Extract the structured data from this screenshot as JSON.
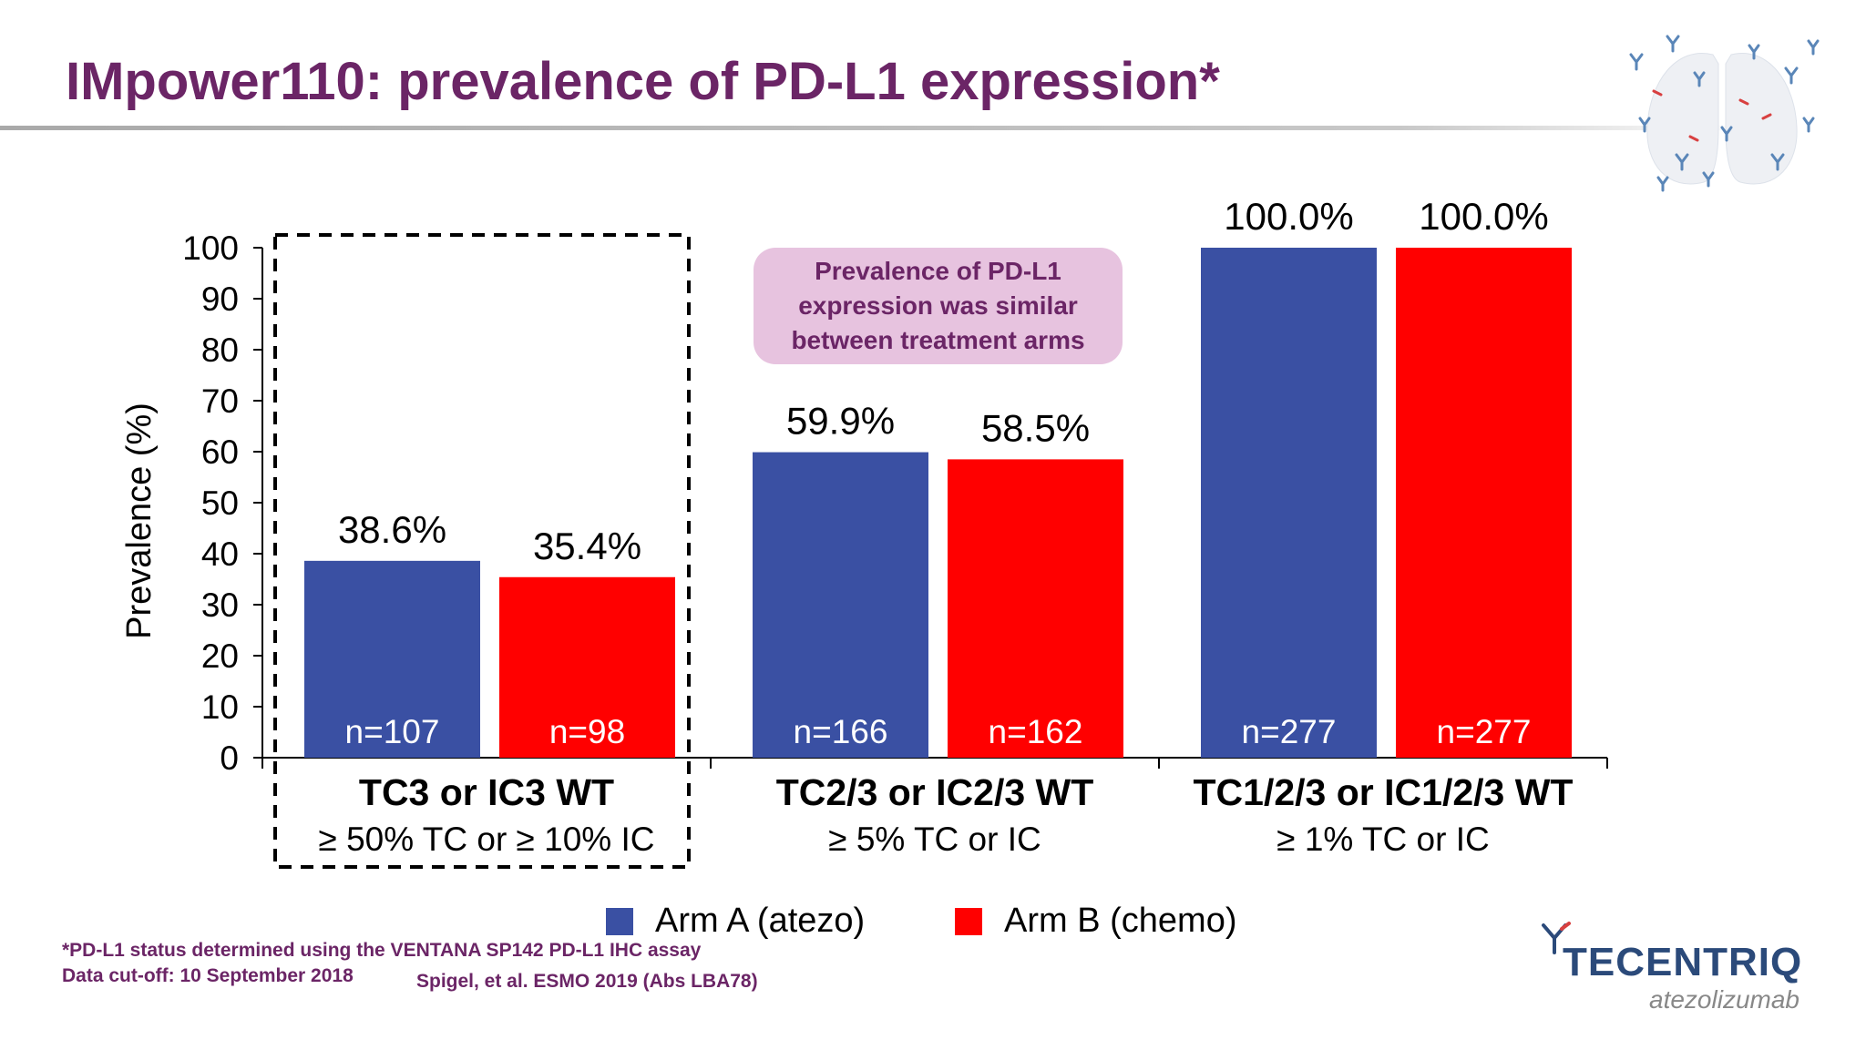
{
  "slide": {
    "title": "IMpower110: prevalence of PD-L1 expression*"
  },
  "callout": {
    "text": "Prevalence of PD-L1 expression was similar between treatment arms"
  },
  "legend": [
    {
      "label": "Arm A (atezo)",
      "color": "#3a50a3"
    },
    {
      "label": "Arm B (chemo)",
      "color": "#ff0000"
    }
  ],
  "footnotes": {
    "assay": "*PD-L1 status determined using the VENTANA SP142 PD-L1 IHC assay",
    "cutoff": "Data cut-off: 10 September 2018",
    "reference": "Spigel, et al. ESMO 2019 (Abs LBA78)"
  },
  "brand": {
    "name": "TECENTRIQ",
    "generic": "atezolizumab",
    "logo_icon": "antibody-y-icon",
    "decoration_icon": "lungs-antibodies-icon"
  },
  "colors": {
    "title": "#6b2566",
    "arm_a": "#3a50a3",
    "arm_b": "#ff0000",
    "callout_bg": "#e7c3df"
  },
  "chart_data": {
    "type": "bar",
    "title": "",
    "xlabel": "",
    "ylabel": "Prevalence (%)",
    "ylim": [
      0,
      100
    ],
    "yticks": [
      0,
      10,
      20,
      30,
      40,
      50,
      60,
      70,
      80,
      90,
      100
    ],
    "grid": false,
    "categories": [
      "TC3 or IC3 WT",
      "TC2/3 or IC2/3 WT",
      "TC1/2/3 or IC1/2/3 WT"
    ],
    "category_sublabels": [
      "≥ 50% TC or ≥ 10% IC",
      "≥ 5% TC or IC",
      "≥ 1% TC or IC"
    ],
    "highlighted_category": "TC3 or IC3 WT",
    "series": [
      {
        "name": "Arm A (atezo)",
        "color": "#3a50a3",
        "values": [
          38.6,
          59.9,
          100.0
        ],
        "value_labels": [
          "38.6%",
          "59.9%",
          "100.0%"
        ],
        "n_labels": [
          "n=107",
          "n=166",
          "n=277"
        ]
      },
      {
        "name": "Arm B (chemo)",
        "color": "#ff0000",
        "values": [
          35.4,
          58.5,
          100.0
        ],
        "value_labels": [
          "35.4%",
          "58.5%",
          "100.0%"
        ],
        "n_labels": [
          "n=98",
          "n=162",
          "n=277"
        ]
      }
    ],
    "legend_position": "bottom"
  }
}
